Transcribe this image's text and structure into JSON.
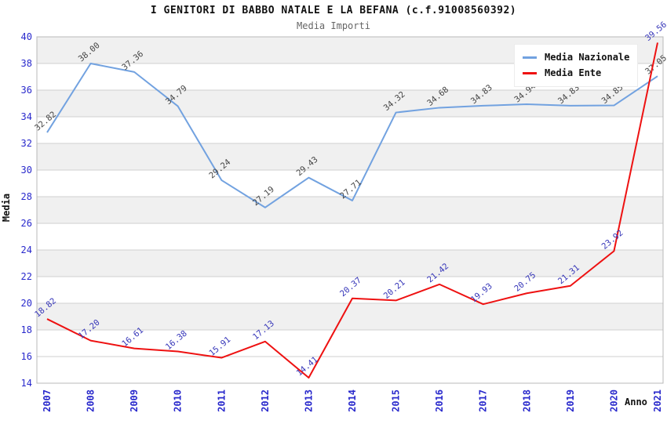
{
  "header": {
    "title": "I GENITORI DI BABBO NATALE E LA BEFANA (c.f.91008560392)",
    "subtitle": "Media Importi"
  },
  "chart_data": {
    "type": "line",
    "title": "I GENITORI DI BABBO NATALE E LA BEFANA (c.f.91008560392)",
    "subtitle": "Media Importi",
    "xlabel": "Anno",
    "ylabel": "Media",
    "categories": [
      "2007",
      "2008",
      "2009",
      "2010",
      "2011",
      "2012",
      "2013",
      "2014",
      "2015",
      "2016",
      "2017",
      "2018",
      "2019",
      "2020",
      "2021"
    ],
    "series": [
      {
        "name": "Media Nazionale",
        "color": "#72a2e0",
        "label_color": "#444444",
        "values": [
          32.82,
          38.0,
          37.36,
          34.79,
          29.24,
          27.19,
          29.43,
          27.71,
          34.32,
          34.68,
          34.83,
          34.94,
          34.83,
          34.85,
          37.05
        ]
      },
      {
        "name": "Media Ente",
        "color": "#ee1111",
        "label_color": "#3434b8",
        "values": [
          18.82,
          17.2,
          16.61,
          16.38,
          15.91,
          17.13,
          14.41,
          20.37,
          20.21,
          21.42,
          19.93,
          20.75,
          21.31,
          23.92,
          39.56
        ]
      }
    ],
    "ylim": [
      14,
      40
    ],
    "ytick_step": 2,
    "grid": "horizontal-bands-alternating",
    "band_color": "#f0f0f0",
    "gridline_color": "#cfcfcf",
    "frame_color": "#b8b8b8",
    "axis_tick_color": "#2929cc",
    "legend_position": "top-right",
    "value_label_decimals": 2
  }
}
